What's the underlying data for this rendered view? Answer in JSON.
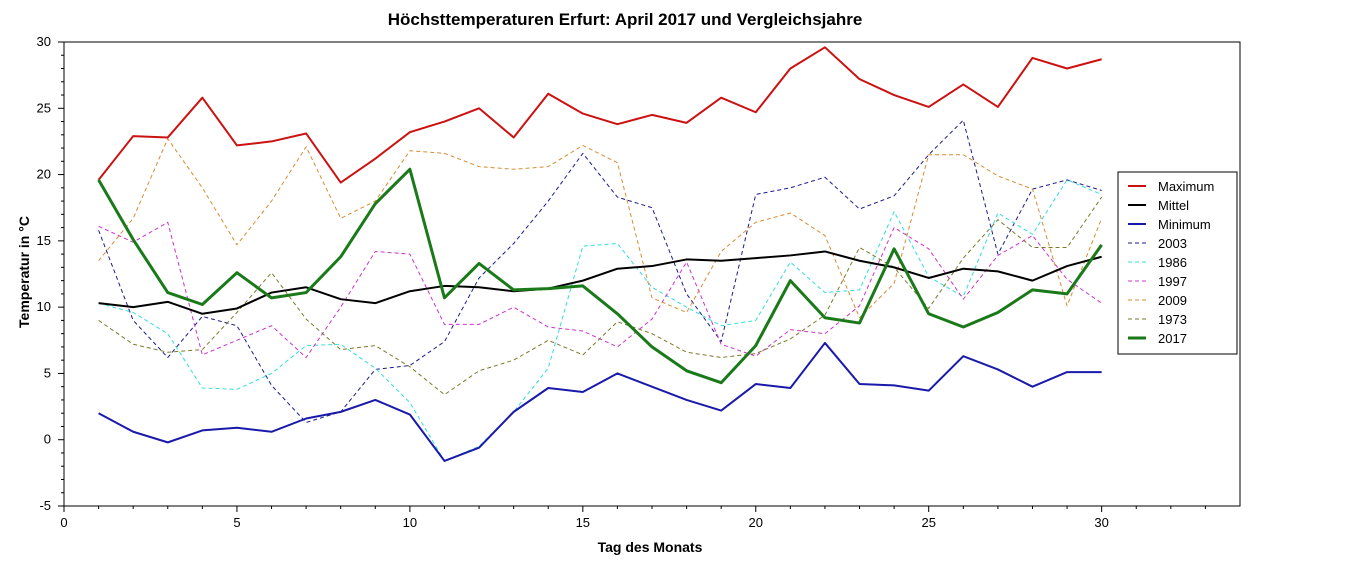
{
  "chart_data": {
    "type": "line",
    "title": "Höchsttemperaturen Erfurt: April 2017 und Vergleichsjahre",
    "xlabel": "Tag des Monats",
    "ylabel": "Temperatur in °C",
    "xlim": [
      0,
      34
    ],
    "ylim": [
      -5,
      30
    ],
    "xticks": [
      0,
      5,
      10,
      15,
      20,
      25,
      30
    ],
    "xtick_labels": [
      "0",
      "5",
      "10",
      "15",
      "20",
      "25",
      "30"
    ],
    "yticks": [
      -5,
      0,
      5,
      10,
      15,
      20,
      25,
      30
    ],
    "ytick_labels": [
      "-5",
      "0",
      "5",
      "10",
      "15",
      "20",
      "25",
      "30"
    ],
    "grid": false,
    "legend_position": "right",
    "x": [
      1,
      2,
      3,
      4,
      5,
      6,
      7,
      8,
      9,
      10,
      11,
      12,
      13,
      14,
      15,
      16,
      17,
      18,
      19,
      20,
      21,
      22,
      23,
      24,
      25,
      26,
      27,
      28,
      29,
      30
    ],
    "series": [
      {
        "name": "Maximum",
        "color": "#cc1111",
        "style": "solid",
        "width": 2,
        "values": [
          19.6,
          22.9,
          22.8,
          25.8,
          22.2,
          22.5,
          23.1,
          19.4,
          21.2,
          23.2,
          24.0,
          25.0,
          22.8,
          26.1,
          24.6,
          23.8,
          24.5,
          23.9,
          25.8,
          24.7,
          28.0,
          29.6,
          27.2,
          26.0,
          25.1,
          26.8,
          25.1,
          28.8,
          28.0,
          28.7
        ]
      },
      {
        "name": "Mittel",
        "color": "#000000",
        "style": "solid",
        "width": 2,
        "values": [
          10.3,
          10.0,
          10.4,
          9.5,
          9.9,
          11.1,
          11.5,
          10.6,
          10.3,
          11.2,
          11.6,
          11.5,
          11.2,
          11.4,
          12.0,
          12.9,
          13.1,
          13.6,
          13.5,
          13.7,
          13.9,
          14.2,
          13.5,
          13.0,
          12.2,
          12.9,
          12.7,
          12.0,
          13.1,
          13.8
        ]
      },
      {
        "name": "Minimum",
        "color": "#1a1aaa",
        "style": "solid",
        "width": 2,
        "values": [
          2.0,
          0.6,
          -0.2,
          0.7,
          0.9,
          0.6,
          1.6,
          2.1,
          3.0,
          1.9,
          -1.6,
          -0.6,
          2.1,
          3.9,
          3.6,
          5.0,
          4.0,
          3.0,
          2.2,
          4.2,
          3.9,
          7.3,
          4.2,
          4.1,
          3.7,
          6.3,
          5.3,
          4.0,
          5.1,
          5.1
        ]
      },
      {
        "name": "2003",
        "color": "#1a1a8c",
        "style": "dashed",
        "width": 1,
        "values": [
          15.8,
          9.0,
          6.2,
          9.3,
          8.6,
          4.1,
          1.3,
          2.1,
          5.3,
          5.6,
          7.4,
          12.2,
          14.8,
          18.0,
          21.6,
          18.3,
          17.5,
          11.0,
          7.4,
          18.5,
          19.0,
          19.8,
          17.4,
          18.4,
          21.5,
          24.1,
          14.0,
          18.9,
          19.6,
          18.8
        ]
      },
      {
        "name": "1986",
        "color": "#33dddd",
        "style": "dashed",
        "width": 1,
        "values": [
          10.3,
          9.6,
          8.0,
          3.9,
          3.8,
          5.0,
          7.1,
          7.2,
          5.4,
          2.8,
          -1.6,
          -0.5,
          2.1,
          5.4,
          14.6,
          14.8,
          11.5,
          10.0,
          8.6,
          9.0,
          13.4,
          11.1,
          11.3,
          17.2,
          12.3,
          10.8,
          17.1,
          15.5,
          19.6,
          18.5
        ]
      },
      {
        "name": "1997",
        "color": "#cc33cc",
        "style": "dashed",
        "width": 1,
        "values": [
          16.1,
          14.9,
          16.4,
          6.4,
          7.5,
          8.6,
          6.2,
          10.0,
          14.2,
          14.0,
          8.7,
          8.7,
          10.0,
          8.5,
          8.2,
          7.0,
          9.1,
          13.4,
          7.2,
          6.3,
          8.3,
          8.0,
          10.1,
          16.0,
          14.4,
          10.6,
          13.9,
          15.4,
          12.1,
          10.3
        ]
      },
      {
        "name": "2009",
        "color": "#d98c33",
        "style": "dashed",
        "width": 1,
        "values": [
          13.5,
          16.7,
          22.7,
          19.0,
          14.7,
          18.0,
          22.1,
          16.7,
          18.0,
          21.8,
          21.6,
          20.6,
          20.4,
          20.6,
          22.2,
          20.9,
          10.7,
          9.6,
          14.2,
          16.4,
          17.1,
          15.4,
          9.2,
          11.8,
          21.5,
          21.5,
          19.9,
          18.9,
          10.1,
          16.7
        ]
      },
      {
        "name": "1973",
        "color": "#7a7a2a",
        "style": "dashed",
        "width": 1,
        "values": [
          9.0,
          7.2,
          6.6,
          6.8,
          9.6,
          12.6,
          9.1,
          6.8,
          7.1,
          5.5,
          3.4,
          5.2,
          6.0,
          7.5,
          6.4,
          8.9,
          8.0,
          6.6,
          6.2,
          6.5,
          7.6,
          9.4,
          14.5,
          13.0,
          9.9,
          13.7,
          16.6,
          14.5,
          14.5,
          18.3
        ]
      },
      {
        "name": "2017",
        "color": "#1a7a1a",
        "style": "solid",
        "width": 3,
        "values": [
          19.6,
          15.1,
          11.1,
          10.2,
          12.6,
          10.7,
          11.1,
          13.8,
          17.8,
          20.4,
          10.7,
          13.3,
          11.3,
          11.4,
          11.6,
          9.5,
          7.0,
          5.2,
          4.3,
          7.1,
          12.0,
          9.2,
          8.8,
          14.4,
          9.5,
          8.5,
          9.6,
          11.3,
          11.0,
          14.7
        ]
      }
    ]
  }
}
